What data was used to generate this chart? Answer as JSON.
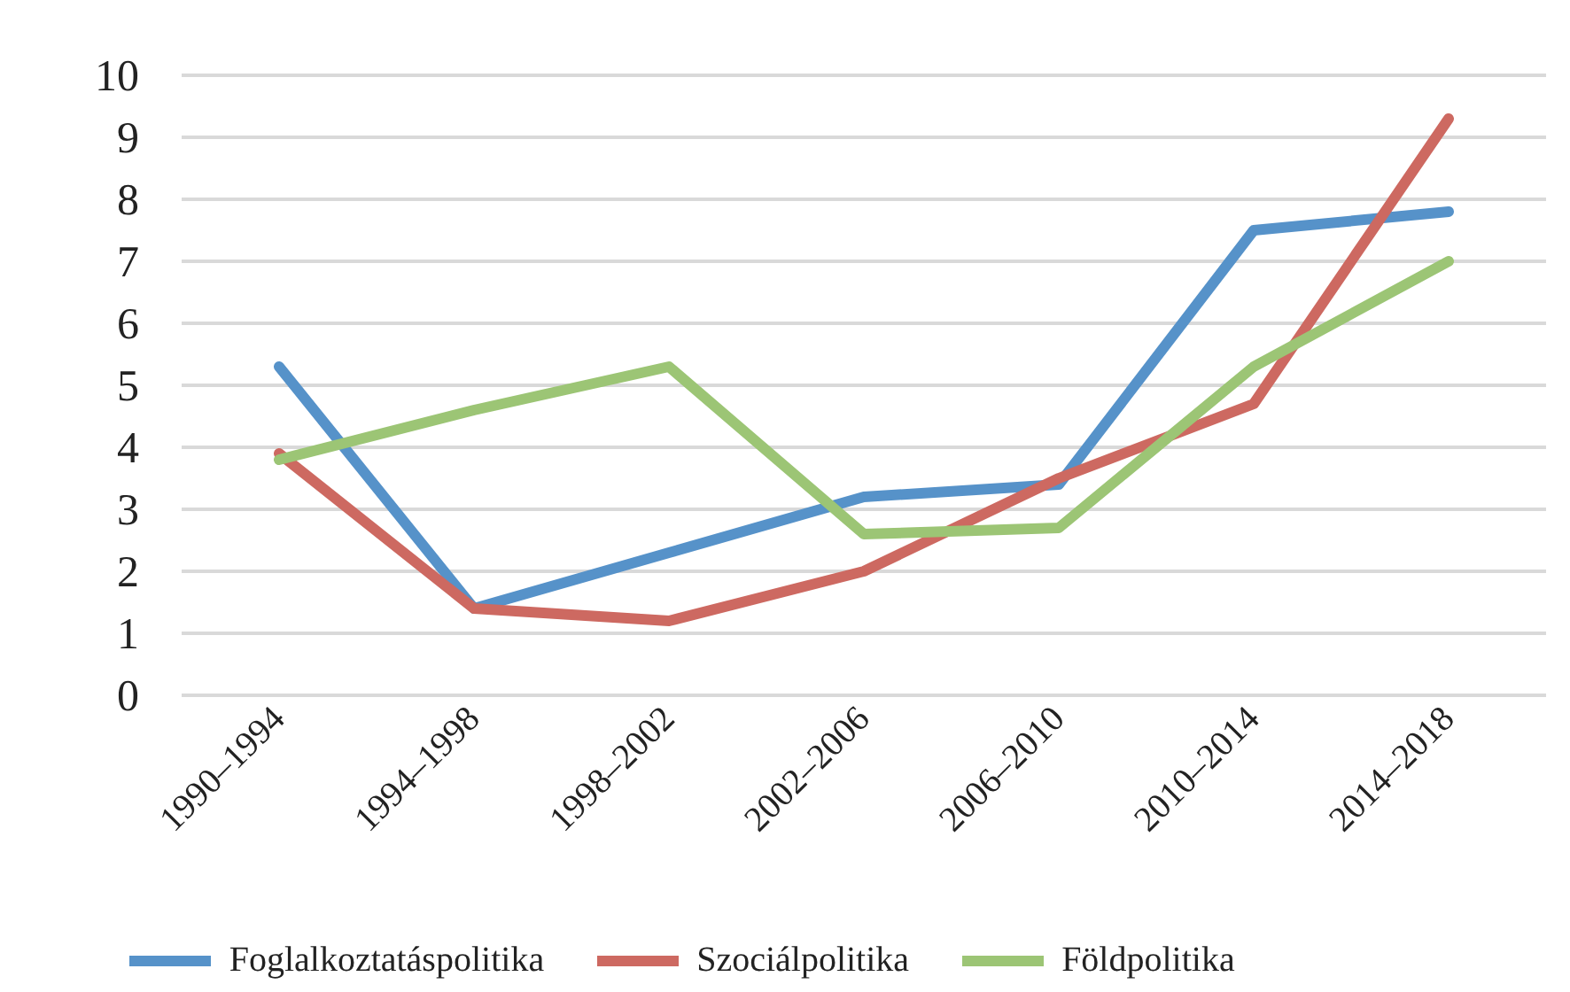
{
  "chart_data": {
    "type": "line",
    "categories": [
      "1990–1994",
      "1994–1998",
      "1998–2002",
      "2002–2006",
      "2006–2010",
      "2010–2014",
      "2014–2018"
    ],
    "series": [
      {
        "name": "Foglalkoztatáspolitika",
        "color": "#5692c9",
        "values": [
          5.3,
          1.4,
          2.3,
          3.2,
          3.4,
          7.5,
          7.8
        ]
      },
      {
        "name": "Szociálpolitika",
        "color": "#cd6961",
        "values": [
          3.9,
          1.4,
          1.2,
          2.0,
          3.5,
          4.7,
          9.3
        ]
      },
      {
        "name": "Földpolitika",
        "color": "#9cc575",
        "values": [
          3.8,
          4.6,
          5.3,
          2.6,
          2.7,
          5.3,
          7.0
        ]
      }
    ],
    "ylim": [
      0,
      10
    ],
    "yticks": [
      0,
      1,
      2,
      3,
      4,
      5,
      6,
      7,
      8,
      9,
      10
    ],
    "grid": "y",
    "legend": "bottom",
    "line_style": "solid"
  }
}
